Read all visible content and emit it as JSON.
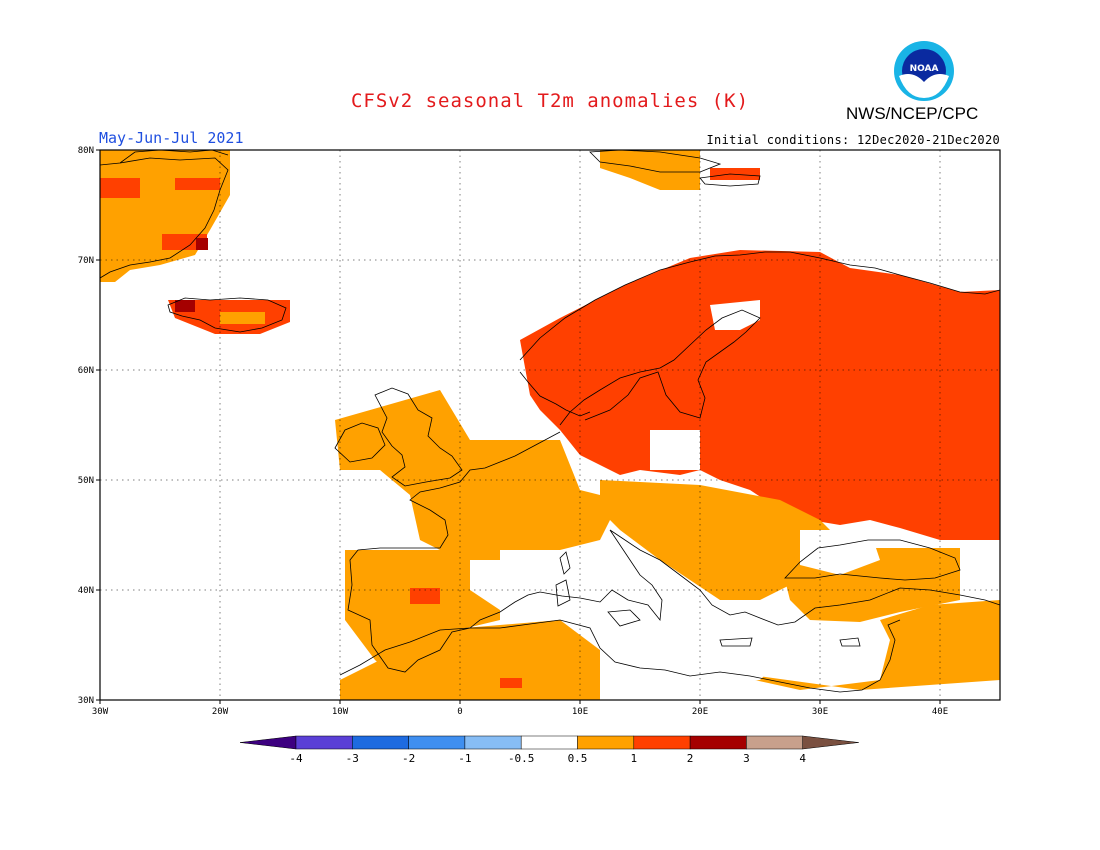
{
  "header": {
    "title": "CFSv2 seasonal T2m anomalies (K)",
    "period": "May-Jun-Jul 2021",
    "initial_conditions": "Initial conditions: 12Dec2020-21Dec2020",
    "agency": "NWS/NCEP/CPC",
    "logo_text": "NOAA"
  },
  "map": {
    "lon_range": [
      -30,
      45
    ],
    "lat_range": [
      30,
      80
    ],
    "lat_ticks": [
      "30N",
      "40N",
      "50N",
      "60N",
      "70N",
      "80N"
    ],
    "lon_ticks": [
      "30W",
      "20W",
      "10W",
      "0",
      "10E",
      "20E",
      "30E",
      "40E"
    ],
    "anomaly_class_colors": {
      "0.5-1": "#ffa100",
      "1-2": "#ff4000",
      "2-3": "#a50000"
    }
  },
  "colorbar": {
    "labels": [
      "-4",
      "-3",
      "-2",
      "-1",
      "-0.5",
      "0.5",
      "1",
      "2",
      "3",
      "4"
    ],
    "colors": [
      "#3d0080",
      "#5a3fd6",
      "#1e6be0",
      "#3f8ff0",
      "#87bdf5",
      "#ffffff",
      "#ffa100",
      "#ff4000",
      "#a50000",
      "#c8a08c",
      "#7a5040"
    ]
  }
}
